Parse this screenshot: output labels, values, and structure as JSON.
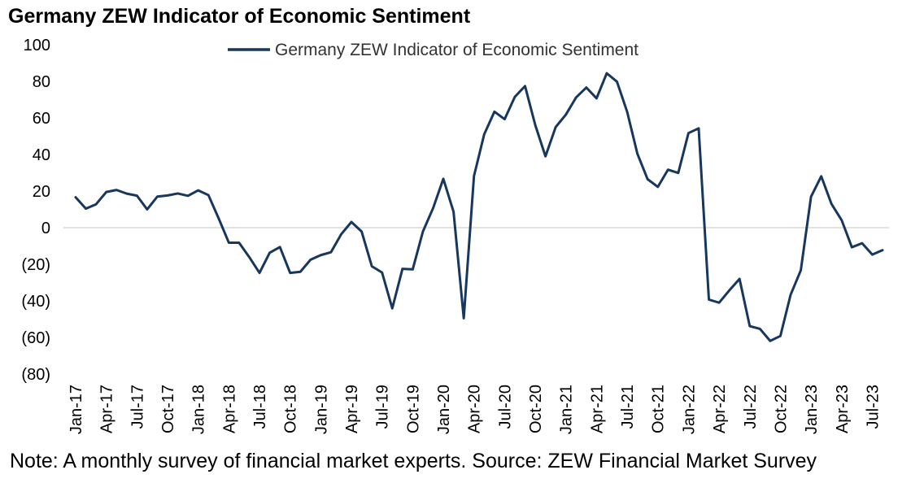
{
  "chart_data": {
    "type": "line",
    "title": "Germany ZEW Indicator of Economic Sentiment",
    "note": "Note: A monthly survey of financial market experts. Source: ZEW Financial Market Survey",
    "ylim": [
      -80,
      100
    ],
    "y_ticks": [
      100,
      80,
      60,
      40,
      20,
      0,
      -20,
      -40,
      -60,
      -80
    ],
    "y_tick_labels": [
      "100",
      "80",
      "60",
      "40",
      "20",
      "0",
      "(20)",
      "(40)",
      "(60)",
      "(80)"
    ],
    "x_tick_labels": [
      "Jan-17",
      "Apr-17",
      "Jul-17",
      "Oct-17",
      "Jan-18",
      "Apr-18",
      "Jul-18",
      "Oct-18",
      "Jan-19",
      "Apr-19",
      "Jul-19",
      "Oct-19",
      "Jan-20",
      "Apr-20",
      "Jul-20",
      "Oct-20",
      "Jan-21",
      "Apr-21",
      "Jul-21",
      "Oct-21",
      "Jan-22",
      "Apr-22",
      "Jul-22",
      "Oct-22",
      "Jan-23",
      "Apr-23",
      "Jul-23"
    ],
    "legend_position": "top-center",
    "grid": false,
    "series": [
      {
        "name": "Germany ZEW Indicator of Economic Sentiment",
        "color": "#17375e",
        "x": [
          "Jan-17",
          "Feb-17",
          "Mar-17",
          "Apr-17",
          "May-17",
          "Jun-17",
          "Jul-17",
          "Aug-17",
          "Sep-17",
          "Oct-17",
          "Nov-17",
          "Dec-17",
          "Jan-18",
          "Feb-18",
          "Mar-18",
          "Apr-18",
          "May-18",
          "Jun-18",
          "Jul-18",
          "Aug-18",
          "Sep-18",
          "Oct-18",
          "Nov-18",
          "Dec-18",
          "Jan-19",
          "Feb-19",
          "Mar-19",
          "Apr-19",
          "May-19",
          "Jun-19",
          "Jul-19",
          "Aug-19",
          "Sep-19",
          "Oct-19",
          "Nov-19",
          "Dec-19",
          "Jan-20",
          "Feb-20",
          "Mar-20",
          "Apr-20",
          "May-20",
          "Jun-20",
          "Jul-20",
          "Aug-20",
          "Sep-20",
          "Oct-20",
          "Nov-20",
          "Dec-20",
          "Jan-21",
          "Feb-21",
          "Mar-21",
          "Apr-21",
          "May-21",
          "Jun-21",
          "Jul-21",
          "Aug-21",
          "Sep-21",
          "Oct-21",
          "Nov-21",
          "Dec-21",
          "Jan-22",
          "Feb-22",
          "Mar-22",
          "Apr-22",
          "May-22",
          "Jun-22",
          "Jul-22",
          "Aug-22",
          "Sep-22",
          "Oct-22",
          "Nov-22",
          "Dec-22",
          "Jan-23",
          "Feb-23",
          "Mar-23",
          "Apr-23",
          "May-23",
          "Jun-23",
          "Jul-23",
          "Aug-23"
        ],
        "values": [
          16.6,
          10.4,
          12.8,
          19.5,
          20.6,
          18.6,
          17.5,
          10.0,
          17.0,
          17.6,
          18.7,
          17.4,
          20.4,
          17.8,
          5.1,
          -8.2,
          -8.2,
          -16.1,
          -24.7,
          -13.7,
          -10.6,
          -24.7,
          -24.1,
          -17.5,
          -15.0,
          -13.4,
          -3.6,
          3.1,
          -2.1,
          -21.1,
          -24.5,
          -44.1,
          -22.5,
          -22.8,
          -2.1,
          10.7,
          26.7,
          8.7,
          -49.5,
          28.2,
          51.0,
          63.4,
          59.3,
          71.5,
          77.4,
          56.1,
          39.0,
          55.0,
          61.8,
          71.2,
          76.6,
          70.7,
          84.4,
          79.8,
          63.3,
          40.4,
          26.5,
          22.3,
          31.7,
          29.9,
          51.7,
          54.3,
          -39.3,
          -41.0,
          -34.3,
          -28.0,
          -53.8,
          -55.3,
          -61.9,
          -59.2,
          -36.7,
          -23.3,
          16.9,
          28.1,
          13.0,
          4.1,
          -10.7,
          -8.5,
          -14.7,
          -12.3
        ]
      }
    ]
  }
}
